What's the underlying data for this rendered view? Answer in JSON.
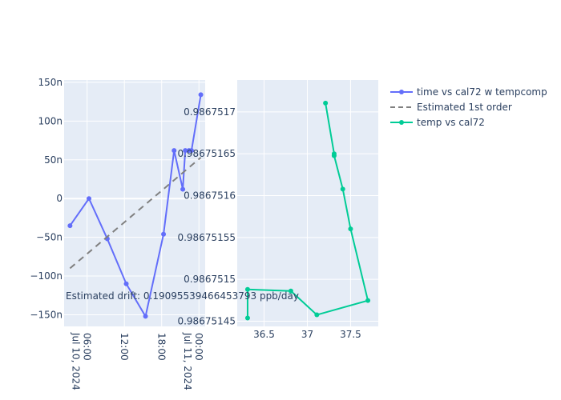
{
  "chart_data": [
    {
      "type": "line",
      "title": "",
      "xlabel": "",
      "ylabel": "",
      "x_ticks": [
        {
          "hours": 6,
          "label": "06:00",
          "sub": "Jul 10, 2024"
        },
        {
          "hours": 12,
          "label": "12:00",
          "sub": ""
        },
        {
          "hours": 18,
          "label": "18:00",
          "sub": ""
        },
        {
          "hours": 24,
          "label": "00:00",
          "sub": "Jul 11, 2024"
        }
      ],
      "y_ticks": [
        {
          "v": 150,
          "label": "150n"
        },
        {
          "v": 100,
          "label": "100n"
        },
        {
          "v": 50,
          "label": "50n"
        },
        {
          "v": 0,
          "label": "0"
        },
        {
          "v": -50,
          "label": "−50n"
        },
        {
          "v": -100,
          "label": "−100n"
        },
        {
          "v": -150,
          "label": "−150n"
        }
      ],
      "xlim_hours_from_2024_07_10": [
        2.3,
        25.0
      ],
      "ylim_n": [
        -165,
        153
      ],
      "series": [
        {
          "name": "time vs cal72 w tempcomp",
          "color": "#636efa",
          "mode": "lines+markers",
          "x_hours": [
            3.25,
            6.3,
            9.25,
            12.3,
            15.4,
            18.3,
            20.0,
            21.4,
            21.8,
            22.4,
            22.8,
            24.3
          ],
          "y_n": [
            -35,
            0,
            -52,
            -110,
            -152,
            -46,
            62,
            12,
            62,
            62,
            62,
            134
          ]
        },
        {
          "name": "Estimated 1st order",
          "color": "#808080",
          "mode": "dash",
          "x_hours": [
            3.25,
            24.3
          ],
          "y_n": [
            -90,
            53
          ]
        }
      ],
      "annotation": "Estimated drift:  0.19095539466453793 ppb/day"
    },
    {
      "type": "line",
      "title": "",
      "xlabel": "",
      "ylabel": "",
      "x_ticks": [
        {
          "v": 36.5,
          "label": "36.5"
        },
        {
          "v": 37,
          "label": "37"
        },
        {
          "v": 37.5,
          "label": "37.5"
        }
      ],
      "y_ticks": [
        {
          "v": 0.9867517,
          "label": "0.9867517"
        },
        {
          "v": 0.98675165,
          "label": "0.98675165"
        },
        {
          "v": 0.9867516,
          "label": "0.9867516"
        },
        {
          "v": 0.98675155,
          "label": "0.98675155"
        },
        {
          "v": 0.9867515,
          "label": "0.9867515"
        },
        {
          "v": 0.98675145,
          "label": "0.98675145"
        }
      ],
      "xlim": [
        36.19,
        37.82
      ],
      "ylim": [
        0.9867514438,
        0.9867517381
      ],
      "series": [
        {
          "name": "temp vs cal72",
          "color": "#00cc96",
          "mode": "lines+markers",
          "x": [
            36.31,
            36.31,
            36.81,
            37.11,
            37.7,
            37.5,
            37.41,
            37.31,
            37.31,
            37.21
          ],
          "y": [
            0.9867514538,
            0.986751488,
            0.9867514861,
            0.9867514576,
            0.9867514747,
            0.9867515603,
            0.9867516078,
            0.9867516477,
            0.98675165,
            0.9867517105
          ]
        }
      ]
    }
  ],
  "legend": {
    "placement": "top-right",
    "items": [
      "time vs cal72 w tempcomp",
      "Estimated 1st order",
      "temp vs cal72"
    ]
  }
}
